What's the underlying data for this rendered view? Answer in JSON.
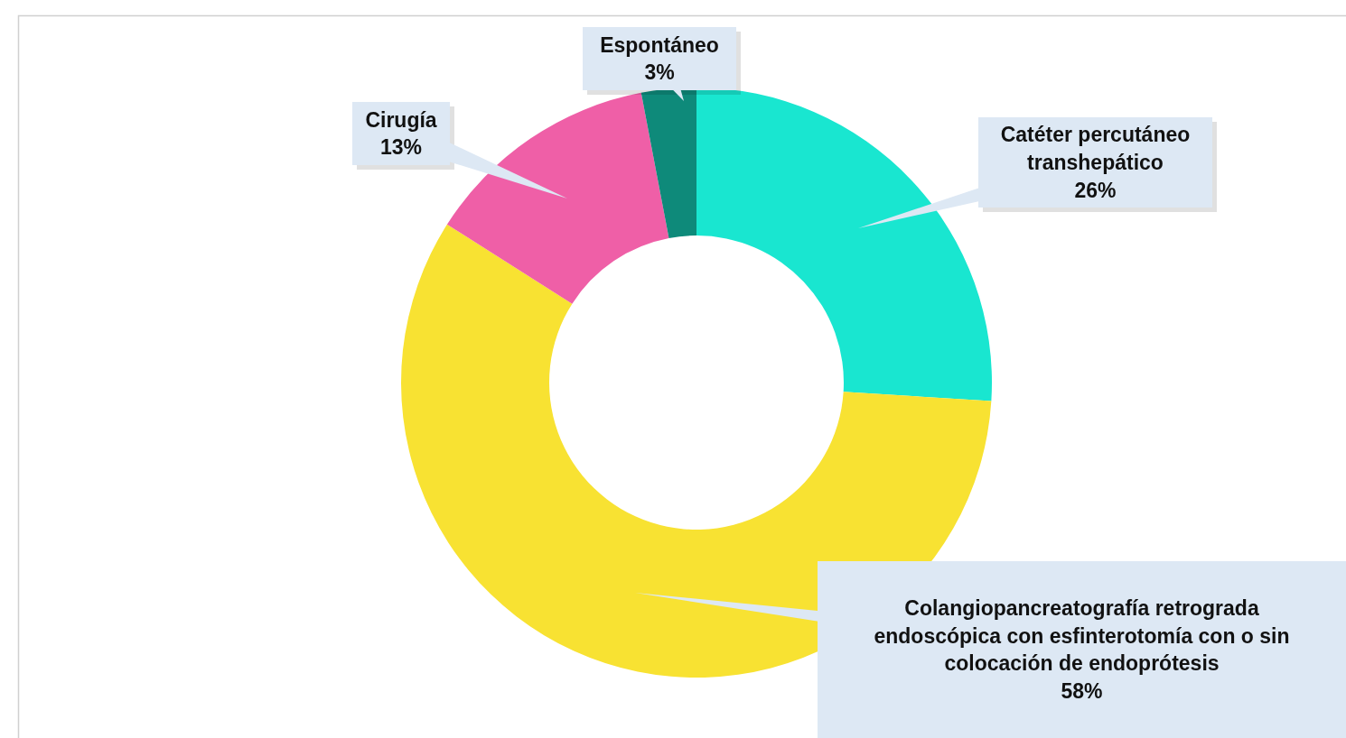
{
  "chart_data": {
    "type": "donut",
    "categories": [
      "Catéter percutáneo transhepático",
      "Colangiopancreatografía retrograda endoscópica con esfinterotomía con o sin colocación de endoprótesis",
      "Cirugía",
      "Espontáneo"
    ],
    "values": [
      26,
      58,
      13,
      3
    ],
    "colors": [
      "#19e6d0",
      "#f8e232",
      "#ef5fa7",
      "#0e8a7a"
    ],
    "value_labels": [
      "26%",
      "58%",
      "13%",
      "3%"
    ]
  }
}
